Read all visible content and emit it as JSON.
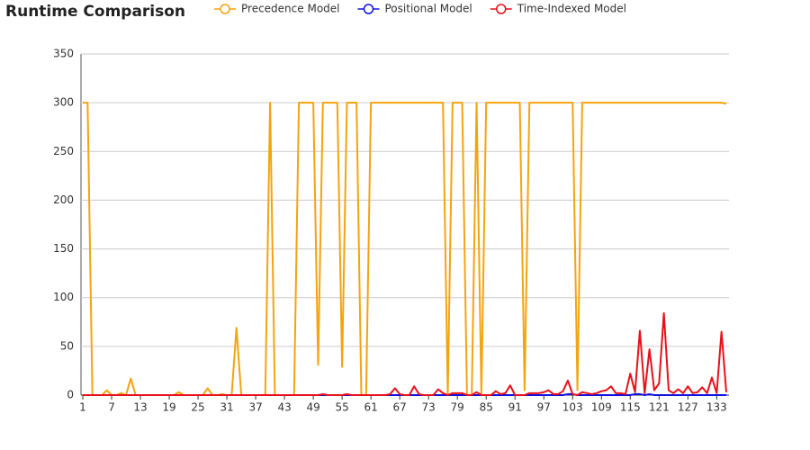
{
  "chart_data": {
    "type": "line",
    "title": "Runtime Comparison",
    "x": [
      1,
      2,
      3,
      4,
      5,
      6,
      7,
      8,
      9,
      10,
      11,
      12,
      13,
      14,
      15,
      16,
      17,
      18,
      19,
      20,
      21,
      22,
      23,
      24,
      25,
      26,
      27,
      28,
      29,
      30,
      31,
      32,
      33,
      34,
      35,
      36,
      37,
      38,
      39,
      40,
      41,
      42,
      43,
      44,
      45,
      46,
      47,
      48,
      49,
      50,
      51,
      52,
      53,
      54,
      55,
      56,
      57,
      58,
      59,
      60,
      61,
      62,
      63,
      64,
      65,
      66,
      67,
      68,
      69,
      70,
      71,
      72,
      73,
      74,
      75,
      76,
      77,
      78,
      79,
      80,
      81,
      82,
      83,
      84,
      85,
      86,
      87,
      88,
      89,
      90,
      91,
      92,
      93,
      94,
      95,
      96,
      97,
      98,
      99,
      100,
      101,
      102,
      103,
      104,
      105,
      106,
      107,
      108,
      109,
      110,
      111,
      112,
      113,
      114,
      115,
      116,
      117,
      118,
      119,
      120,
      121,
      122,
      123,
      124,
      125,
      126,
      127,
      128,
      129,
      130,
      131,
      132,
      133,
      134,
      135
    ],
    "xlim": [
      1,
      135
    ],
    "xticks": [
      1,
      7,
      13,
      19,
      25,
      31,
      37,
      43,
      49,
      55,
      61,
      67,
      73,
      79,
      85,
      91,
      97,
      103,
      109,
      115,
      121,
      127,
      133
    ],
    "ylim": [
      0,
      350
    ],
    "yticks": [
      0,
      50,
      100,
      150,
      200,
      250,
      300,
      350
    ],
    "grid": true,
    "legend": "top",
    "series": [
      {
        "name": "Precedence Model",
        "color": "#f5a30f",
        "values": [
          300,
          300,
          0,
          0,
          0,
          5,
          0,
          0,
          2,
          0,
          17,
          0,
          0,
          0,
          0,
          0,
          0,
          0,
          0,
          0,
          3,
          0,
          0,
          0,
          0,
          0,
          7,
          0,
          0,
          1,
          0,
          0,
          69,
          0,
          0,
          0,
          0,
          0,
          0,
          300,
          0,
          0,
          0,
          0,
          0,
          300,
          300,
          300,
          300,
          31,
          300,
          300,
          300,
          300,
          29,
          300,
          300,
          300,
          0,
          0,
          300,
          300,
          300,
          300,
          300,
          300,
          300,
          300,
          300,
          300,
          300,
          300,
          300,
          300,
          300,
          300,
          0,
          300,
          300,
          300,
          0,
          0,
          300,
          0,
          300,
          300,
          300,
          300,
          300,
          300,
          300,
          300,
          5,
          300,
          300,
          300,
          300,
          300,
          300,
          300,
          300,
          300,
          300,
          5,
          300,
          300,
          300,
          300,
          300,
          300,
          300,
          300,
          300,
          300,
          300,
          300,
          300,
          300,
          300,
          300,
          300,
          300,
          300,
          300,
          300,
          300,
          300,
          300,
          300,
          300,
          300,
          300,
          300,
          300,
          299
        ]
      },
      {
        "name": "Positional Model",
        "color": "#1010e0",
        "values": [
          0,
          0,
          0,
          0,
          0,
          0,
          0,
          0,
          0,
          0,
          0,
          0,
          0,
          0,
          0,
          0,
          0,
          0,
          0,
          0,
          0,
          0,
          0,
          0,
          0,
          0,
          0,
          0,
          0,
          0,
          0,
          0,
          0,
          0,
          0,
          0,
          0,
          0,
          0,
          0,
          0,
          0,
          0,
          0,
          0,
          0,
          0,
          0,
          0,
          0,
          0,
          0,
          0,
          0,
          0,
          0,
          0,
          0,
          0,
          0,
          0,
          0,
          0,
          0,
          0,
          0,
          0,
          0,
          0,
          0,
          0,
          0,
          0,
          0,
          0,
          0,
          0,
          0,
          0,
          0,
          0,
          0,
          0,
          0,
          0,
          0,
          0,
          0,
          0,
          0,
          0,
          0,
          0,
          0,
          0,
          0,
          0,
          0,
          0,
          0,
          0,
          1,
          1,
          0,
          0,
          0,
          0,
          0,
          0,
          0,
          0,
          0,
          0,
          0,
          0,
          1,
          1,
          0,
          1,
          0,
          0,
          0,
          0,
          0,
          0,
          0,
          0,
          0,
          0,
          0,
          0,
          0,
          0,
          0,
          0
        ]
      },
      {
        "name": "Time-Indexed Model",
        "color": "#e8101a",
        "values": [
          0,
          0,
          0,
          0,
          0,
          0,
          0,
          0,
          0,
          0,
          0,
          0,
          0,
          0,
          0,
          0,
          0,
          0,
          0,
          0,
          0,
          0,
          0,
          0,
          0,
          0,
          0,
          0,
          0,
          0,
          0,
          0,
          0,
          0,
          0,
          0,
          0,
          0,
          0,
          0,
          0,
          0,
          0,
          0,
          0,
          0,
          0,
          0,
          0,
          0,
          1,
          0,
          0,
          0,
          0,
          1,
          0,
          0,
          0,
          0,
          0,
          0,
          0,
          0,
          1,
          7,
          1,
          0,
          0,
          9,
          1,
          0,
          0,
          0,
          6,
          2,
          0,
          2,
          2,
          2,
          0,
          0,
          3,
          0,
          0,
          0,
          4,
          1,
          2,
          10,
          0,
          0,
          0,
          2,
          2,
          2,
          3,
          5,
          1,
          1,
          4,
          15,
          1,
          0,
          3,
          2,
          1,
          2,
          4,
          5,
          9,
          2,
          2,
          1,
          22,
          3,
          66,
          2,
          47,
          5,
          12,
          84,
          5,
          2,
          6,
          2,
          9,
          2,
          3,
          8,
          2,
          18,
          2,
          65,
          3
        ]
      }
    ]
  }
}
